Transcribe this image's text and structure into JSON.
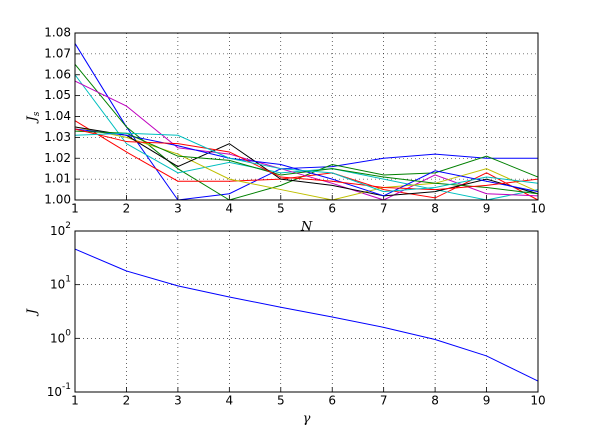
{
  "chart_data": [
    {
      "type": "line",
      "xlabel": "N",
      "ylabel": {
        "base": "J",
        "subscript": "s"
      },
      "x": [
        1,
        2,
        3,
        4,
        5,
        6,
        7,
        8,
        9,
        10
      ],
      "xlim": [
        1,
        10
      ],
      "xticks": [
        1,
        2,
        3,
        4,
        5,
        6,
        7,
        8,
        9,
        10
      ],
      "ylim": [
        1.0,
        1.08
      ],
      "yticks": [
        {
          "value": 1.0,
          "label": "1.00"
        },
        {
          "value": 1.01,
          "label": "1.01"
        },
        {
          "value": 1.02,
          "label": "1.02"
        },
        {
          "value": 1.03,
          "label": "1.03"
        },
        {
          "value": 1.04,
          "label": "1.04"
        },
        {
          "value": 1.05,
          "label": "1.05"
        },
        {
          "value": 1.06,
          "label": "1.06"
        },
        {
          "value": 1.07,
          "label": "1.07"
        },
        {
          "value": 1.08,
          "label": "1.08"
        }
      ],
      "grid": true,
      "log": false,
      "series": [
        {
          "color": "#0000ff",
          "values": [
            1.075,
            1.035,
            1.0,
            1.003,
            1.015,
            1.016,
            1.02,
            1.022,
            1.02,
            1.02
          ]
        },
        {
          "color": "#008000",
          "values": [
            1.065,
            1.035,
            1.015,
            1.0,
            1.007,
            1.017,
            1.012,
            1.013,
            1.021,
            1.011
          ]
        },
        {
          "color": "#ff0000",
          "values": [
            1.038,
            1.023,
            1.009,
            1.009,
            1.01,
            1.013,
            1.005,
            1.001,
            1.013,
            1.0
          ]
        },
        {
          "color": "#00bfbf",
          "values": [
            1.06,
            1.027,
            1.013,
            1.018,
            1.013,
            1.015,
            1.01,
            1.005,
            1.0,
            1.005
          ]
        },
        {
          "color": "#bf00bf",
          "values": [
            1.057,
            1.045,
            1.025,
            1.022,
            1.015,
            1.008,
            1.0,
            1.012,
            1.003,
            1.002
          ]
        },
        {
          "color": "#bfbf00",
          "values": [
            1.035,
            1.03,
            1.022,
            1.01,
            1.005,
            1.0,
            1.006,
            1.008,
            1.015,
            1.004
          ]
        },
        {
          "color": "#000000",
          "values": [
            1.035,
            1.031,
            1.016,
            1.027,
            1.01,
            1.007,
            1.002,
            1.004,
            1.01,
            1.003
          ]
        },
        {
          "color": "#0000ff",
          "values": [
            1.034,
            1.031,
            1.026,
            1.02,
            1.017,
            1.01,
            1.002,
            1.014,
            1.009,
            1.004
          ]
        },
        {
          "color": "#008000",
          "values": [
            1.033,
            1.032,
            1.021,
            1.019,
            1.012,
            1.015,
            1.011,
            1.008,
            1.006,
            1.003
          ]
        },
        {
          "color": "#ff0000",
          "values": [
            1.034,
            1.028,
            1.027,
            1.023,
            1.011,
            1.009,
            1.006,
            1.005,
            1.007,
            1.01
          ]
        },
        {
          "color": "#00bfbf",
          "values": [
            1.031,
            1.032,
            1.031,
            1.02,
            1.015,
            1.013,
            1.004,
            1.006,
            1.011,
            1.008
          ]
        }
      ]
    },
    {
      "type": "line",
      "xlabel": "γ",
      "ylabel": {
        "base": "J"
      },
      "x": [
        1,
        2,
        3,
        4,
        5,
        6,
        7,
        8,
        9,
        10
      ],
      "xlim": [
        1,
        10
      ],
      "xticks": [
        1,
        2,
        3,
        4,
        5,
        6,
        7,
        8,
        9,
        10
      ],
      "ylim": [
        0.1,
        100
      ],
      "yticks": [
        {
          "value": 0.1,
          "label": "10",
          "exponent": "-1"
        },
        {
          "value": 1,
          "label": "10",
          "exponent": "0"
        },
        {
          "value": 10,
          "label": "10",
          "exponent": "1"
        },
        {
          "value": 100,
          "label": "10",
          "exponent": "2"
        }
      ],
      "grid": true,
      "log": true,
      "series": [
        {
          "color": "#0000ff",
          "values": [
            46,
            18,
            9.5,
            5.9,
            3.8,
            2.5,
            1.6,
            0.95,
            0.47,
            0.16
          ]
        }
      ]
    }
  ]
}
